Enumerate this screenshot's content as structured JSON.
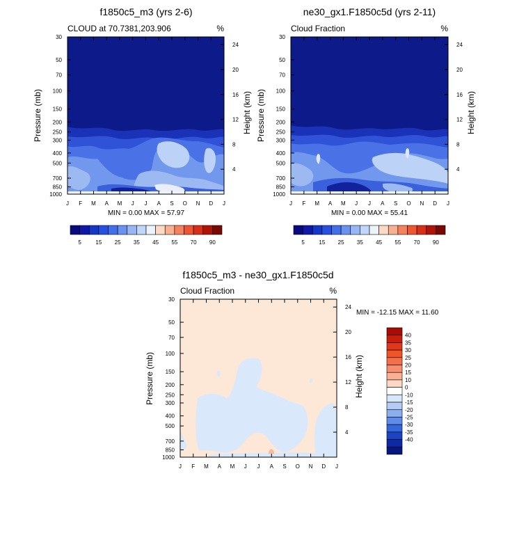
{
  "colors": {
    "deep_blue": "#0d1a8a",
    "frame": "#000000",
    "diff_warm": "#fde8d7",
    "diff_cool": "#d9e8fb",
    "diff_salmon": "#f9b89a"
  },
  "chart_data": [
    {
      "type": "heatmap",
      "id": "left",
      "title": "f1850c5_m3 (yrs 2-6)",
      "subtitle_left": "CLOUD at 70.7381,203.906",
      "units": "%",
      "ylabel": "Pressure (mb)",
      "ylabel_right": "Height (km)",
      "x_ticks": [
        "J",
        "F",
        "M",
        "A",
        "M",
        "J",
        "J",
        "A",
        "S",
        "O",
        "N",
        "D",
        "J"
      ],
      "y_ticks": [
        "30",
        "50",
        "70",
        "100",
        "150",
        "200",
        "250",
        "300",
        "400",
        "500",
        "700",
        "850",
        "1000"
      ],
      "height_ticks": [
        "24",
        "20",
        "16",
        "12",
        "8",
        "4"
      ],
      "min_max": "MIN =   0.00 MAX =  57.97",
      "colorbar_labels": [
        "5",
        "15",
        "25",
        "35",
        "45",
        "55",
        "70",
        "90"
      ],
      "colorbar_colors": [
        "#0a0a80",
        "#1018a8",
        "#1636c8",
        "#2850e0",
        "#4270ea",
        "#6a92f0",
        "#98b6f4",
        "#c2d6fa",
        "#eef2fb",
        "#fcd9c4",
        "#f9b090",
        "#f4825c",
        "#ee5530",
        "#d83018",
        "#b01408",
        "#7a0804"
      ]
    },
    {
      "type": "heatmap",
      "id": "right",
      "title": "ne30_gx1.F1850c5d (yrs 2-11)",
      "subtitle_left": "Cloud Fraction",
      "units": "%",
      "ylabel": "Pressure (mb)",
      "ylabel_right": "Height (km)",
      "x_ticks": [
        "J",
        "F",
        "M",
        "A",
        "M",
        "J",
        "J",
        "A",
        "S",
        "O",
        "N",
        "D",
        "J"
      ],
      "y_ticks": [
        "30",
        "50",
        "70",
        "100",
        "150",
        "200",
        "250",
        "300",
        "400",
        "500",
        "700",
        "850",
        "1000"
      ],
      "height_ticks": [
        "24",
        "20",
        "16",
        "12",
        "8",
        "4"
      ],
      "min_max": "MIN =   0.00 MAX =  55.41",
      "colorbar_labels": [
        "5",
        "15",
        "25",
        "35",
        "45",
        "55",
        "70",
        "90"
      ],
      "colorbar_colors": [
        "#0a0a80",
        "#1018a8",
        "#1636c8",
        "#2850e0",
        "#4270ea",
        "#6a92f0",
        "#98b6f4",
        "#c2d6fa",
        "#eef2fb",
        "#fcd9c4",
        "#f9b090",
        "#f4825c",
        "#ee5530",
        "#d83018",
        "#b01408",
        "#7a0804"
      ]
    },
    {
      "type": "heatmap",
      "id": "diff",
      "title": "f1850c5_m3 - ne30_gx1.F1850c5d",
      "subtitle_left": "Cloud Fraction",
      "units": "%",
      "ylabel": "Pressure (mb)",
      "ylabel_right": "Height (km)",
      "x_ticks": [
        "J",
        "F",
        "M",
        "A",
        "M",
        "J",
        "J",
        "A",
        "S",
        "O",
        "N",
        "D",
        "J"
      ],
      "y_ticks": [
        "30",
        "50",
        "70",
        "100",
        "150",
        "200",
        "250",
        "300",
        "400",
        "500",
        "700",
        "850",
        "1000"
      ],
      "height_ticks": [
        "24",
        "20",
        "16",
        "12",
        "8",
        "4"
      ],
      "min_max": "MIN = -12.15 MAX =  11.60",
      "colorbar_labels": [
        "40",
        "35",
        "30",
        "25",
        "20",
        "15",
        "10",
        "0",
        "-10",
        "-15",
        "-20",
        "-25",
        "-30",
        "-35",
        "-40"
      ],
      "colorbar_colors": [
        "#a80c04",
        "#c81e0c",
        "#e03818",
        "#f05428",
        "#f4704a",
        "#f88e6c",
        "#fab092",
        "#fdd8c4",
        "#ffffff",
        "#d6e6fb",
        "#b2ccf6",
        "#8aaef0",
        "#5e8ce8",
        "#3466dc",
        "#1a44c4",
        "#0c2aa4",
        "#061880"
      ]
    }
  ]
}
